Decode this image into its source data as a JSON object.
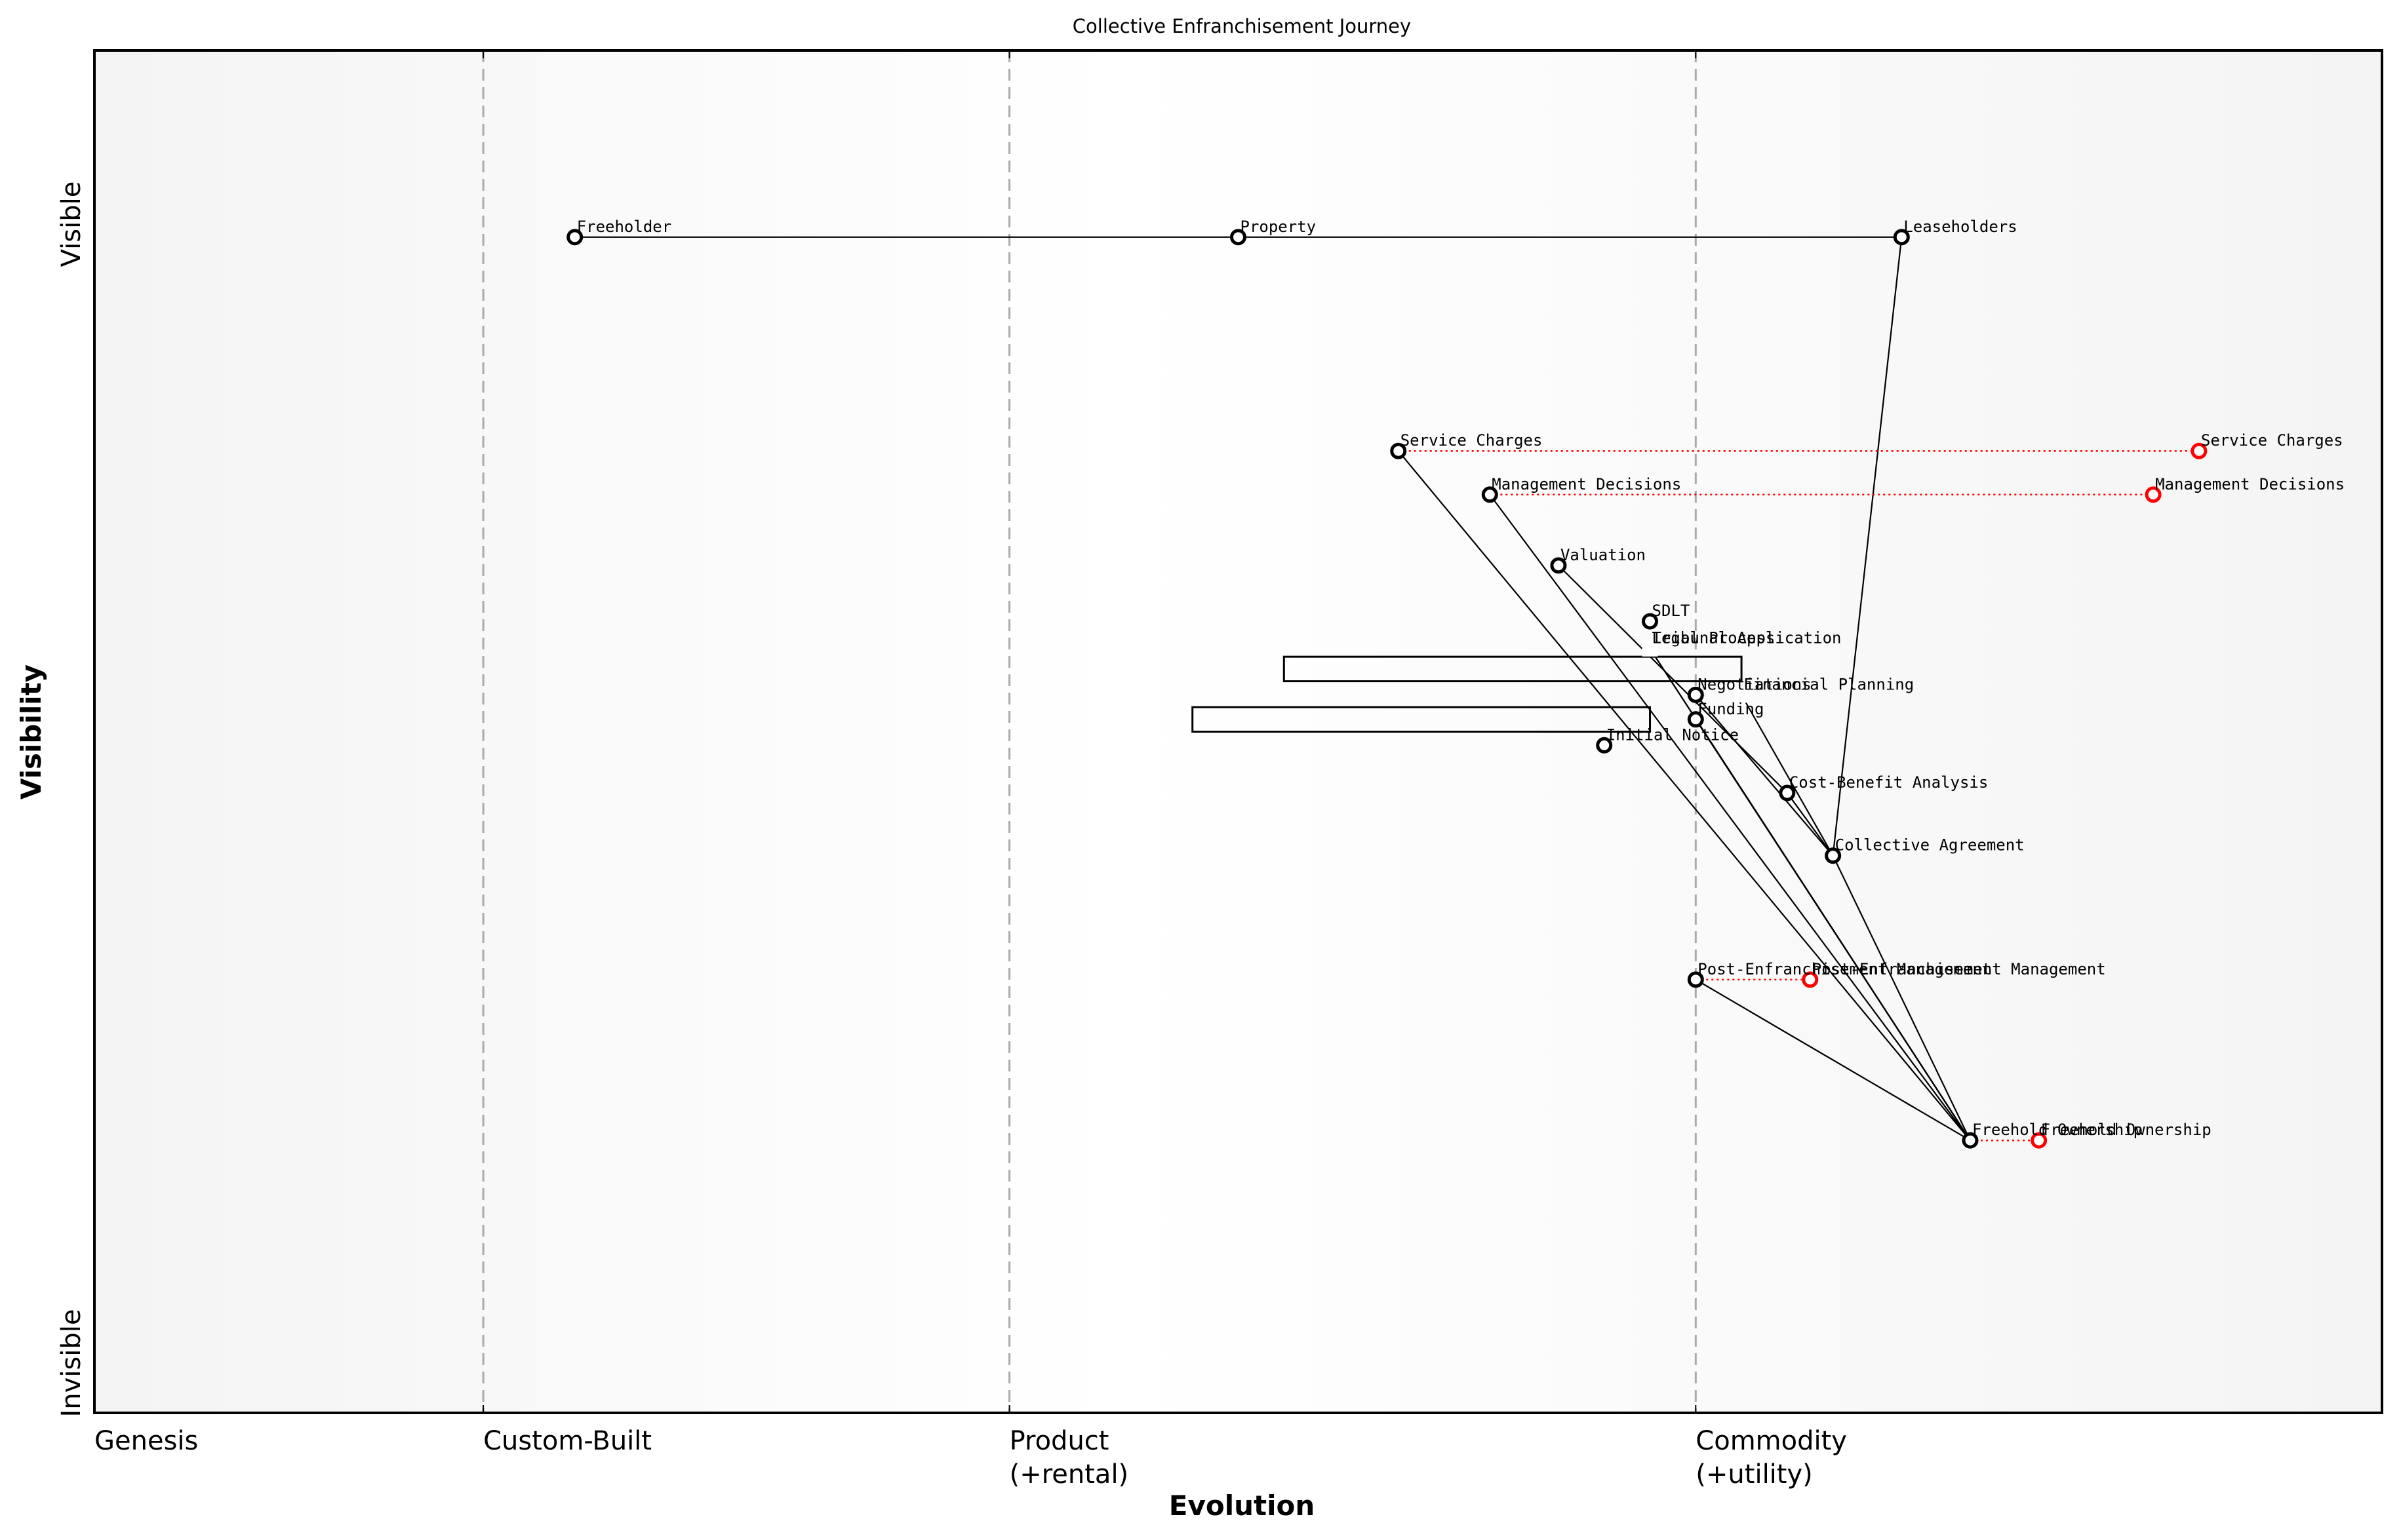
{
  "chart": {
    "title": "Collective Enfranchisement Journey",
    "x_axis_title": "Evolution",
    "y_axis_title": "Visibility",
    "y_top_label": "Visible",
    "y_bottom_label": "Invisible",
    "stages": [
      {
        "label": "Genesis",
        "label2": "",
        "x": 0.0
      },
      {
        "label": "Custom-Built",
        "label2": "",
        "x": 0.17
      },
      {
        "label": "Product",
        "label2": "(+rental)",
        "x": 0.4
      },
      {
        "label": "Commodity",
        "label2": "(+utility)",
        "x": 0.7
      }
    ],
    "colors": {
      "background": "#ffffff",
      "plot_edge": "#f5f5f5",
      "plot_center": "#ffffff",
      "gridline": "#aaaaaa",
      "node": "#000000",
      "evolved": "#ff0000",
      "link": "#000000"
    }
  },
  "chart_data": {
    "type": "wardley-map",
    "title": "Collective Enfranchisement Journey",
    "xlabel": "Evolution",
    "ylabel": "Visibility",
    "xlim": [
      0,
      1
    ],
    "ylim": [
      0,
      1
    ],
    "x_stages": [
      "Genesis",
      "Custom-Built",
      "Product (+rental)",
      "Commodity (+utility)"
    ],
    "x_stage_boundaries": [
      0.0,
      0.17,
      0.4,
      0.7
    ],
    "components": [
      {
        "id": "freeholder",
        "name": "Freeholder",
        "evolution": 0.21,
        "visibility": 0.863
      },
      {
        "id": "property",
        "name": "Property",
        "evolution": 0.5,
        "visibility": 0.863
      },
      {
        "id": "leaseholders",
        "name": "Leaseholders",
        "evolution": 0.79,
        "visibility": 0.863
      },
      {
        "id": "service_charges",
        "name": "Service Charges",
        "evolution": 0.57,
        "visibility": 0.706
      },
      {
        "id": "management_decisions",
        "name": "Management Decisions",
        "evolution": 0.61,
        "visibility": 0.674
      },
      {
        "id": "valuation",
        "name": "Valuation",
        "evolution": 0.64,
        "visibility": 0.622
      },
      {
        "id": "sdlt",
        "name": "SDLT",
        "evolution": 0.68,
        "visibility": 0.581
      },
      {
        "id": "legal_process",
        "name": "Legal Process",
        "evolution": 0.68,
        "visibility": 0.561,
        "hidden_marker": true
      },
      {
        "id": "tribunal_application",
        "name": "Tribunal Application",
        "evolution": 0.68,
        "visibility": 0.561,
        "hidden_marker": true
      },
      {
        "id": "negotiations",
        "name": "Negotiations",
        "evolution": 0.7,
        "visibility": 0.527
      },
      {
        "id": "financial_planning",
        "name": "Financial Planning",
        "evolution": 0.72,
        "visibility": 0.527,
        "hidden_marker": true
      },
      {
        "id": "funding",
        "name": "Funding",
        "evolution": 0.7,
        "visibility": 0.509
      },
      {
        "id": "initial_notice",
        "name": "Initial Notice",
        "evolution": 0.66,
        "visibility": 0.49
      },
      {
        "id": "cost_benefit",
        "name": "Cost-Benefit Analysis",
        "evolution": 0.74,
        "visibility": 0.455
      },
      {
        "id": "collective_agreement",
        "name": "Collective Agreement",
        "evolution": 0.76,
        "visibility": 0.409
      },
      {
        "id": "post_enf_mgmt",
        "name": "Post-Enfranchisement Management",
        "evolution": 0.7,
        "visibility": 0.318
      },
      {
        "id": "freehold_ownership",
        "name": "Freehold Ownership",
        "evolution": 0.82,
        "visibility": 0.2
      }
    ],
    "evolved": [
      {
        "id": "service_charges_ev",
        "name": "Service Charges",
        "from": "service_charges",
        "evolution": 0.92,
        "visibility": 0.706
      },
      {
        "id": "management_decisions_ev",
        "name": "Management Decisions",
        "from": "management_decisions",
        "evolution": 0.9,
        "visibility": 0.674
      },
      {
        "id": "post_enf_mgmt_ev",
        "name": "Post-Enfranchisement Management",
        "from": "post_enf_mgmt",
        "evolution": 0.75,
        "visibility": 0.318
      },
      {
        "id": "freehold_ownership_ev",
        "name": "Freehold Ownership",
        "from": "freehold_ownership",
        "evolution": 0.85,
        "visibility": 0.2
      }
    ],
    "links": [
      [
        "freeholder",
        "property"
      ],
      [
        "property",
        "leaseholders"
      ],
      [
        "leaseholders",
        "collective_agreement"
      ],
      [
        "service_charges",
        "freehold_ownership"
      ],
      [
        "management_decisions",
        "freehold_ownership"
      ],
      [
        "valuation",
        "cost_benefit"
      ],
      [
        "legal_process",
        "freehold_ownership"
      ],
      [
        "tribunal_application",
        "freehold_ownership"
      ],
      [
        "negotiations",
        "collective_agreement"
      ],
      [
        "financial_planning",
        "collective_agreement"
      ],
      [
        "funding",
        "freehold_ownership"
      ],
      [
        "cost_benefit",
        "collective_agreement"
      ],
      [
        "collective_agreement",
        "freehold_ownership"
      ],
      [
        "post_enf_mgmt",
        "freehold_ownership"
      ]
    ],
    "boxes": [
      {
        "x0": 0.52,
        "x1": 0.72,
        "v0": 0.555,
        "v1": 0.537
      },
      {
        "x0": 0.48,
        "x1": 0.68,
        "v0": 0.518,
        "v1": 0.5
      }
    ]
  }
}
